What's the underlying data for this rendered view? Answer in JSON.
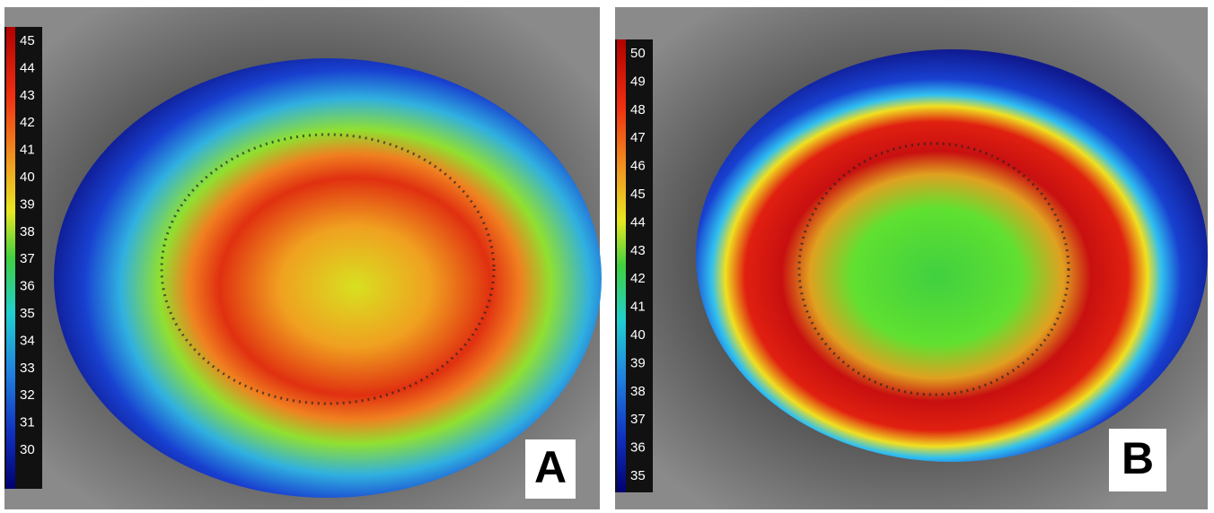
{
  "panels": [
    {
      "label": "A",
      "scale": [
        "45",
        "44",
        "43",
        "42",
        "41",
        "40",
        "39",
        "38",
        "37",
        "36",
        "35",
        "34",
        "33",
        "32",
        "31",
        "30"
      ]
    },
    {
      "label": "B",
      "scale": [
        "50",
        "49",
        "48",
        "47",
        "46",
        "45",
        "44",
        "43",
        "42",
        "41",
        "40",
        "39",
        "38",
        "37",
        "36",
        "35"
      ]
    }
  ]
}
